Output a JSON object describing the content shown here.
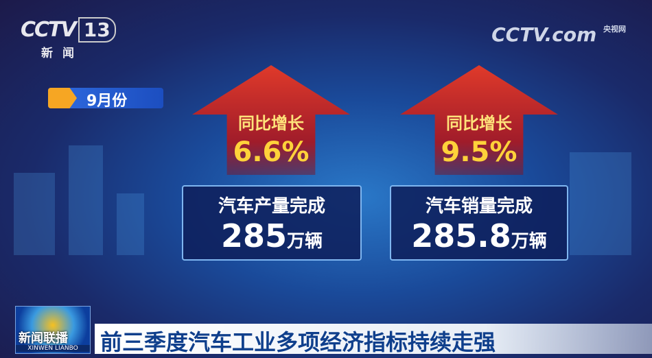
{
  "channel_logo": {
    "brand": "CCTV",
    "number": "13",
    "subtitle": "新闻"
  },
  "watermark": {
    "brand": "CCTV.com",
    "cn": "央视网"
  },
  "month_label": "9月份",
  "stats": [
    {
      "growth_label": "同比增长",
      "growth_value": "6.6%",
      "title": "汽车产量完成",
      "value": "285",
      "unit": "万辆"
    },
    {
      "growth_label": "同比增长",
      "growth_value": "9.5%",
      "title": "汽车销量完成",
      "value": "285.8",
      "unit": "万辆"
    }
  ],
  "program": {
    "name": "新闻联播",
    "pinyin": "XINWEN LIANBO"
  },
  "headline": "前三季度汽车工业多项经济指标持续走强",
  "colors": {
    "arrow": "#d8342a",
    "growth_text": "#ffd23a",
    "headline": "#0f3f8c",
    "tag": "#f6a623"
  }
}
